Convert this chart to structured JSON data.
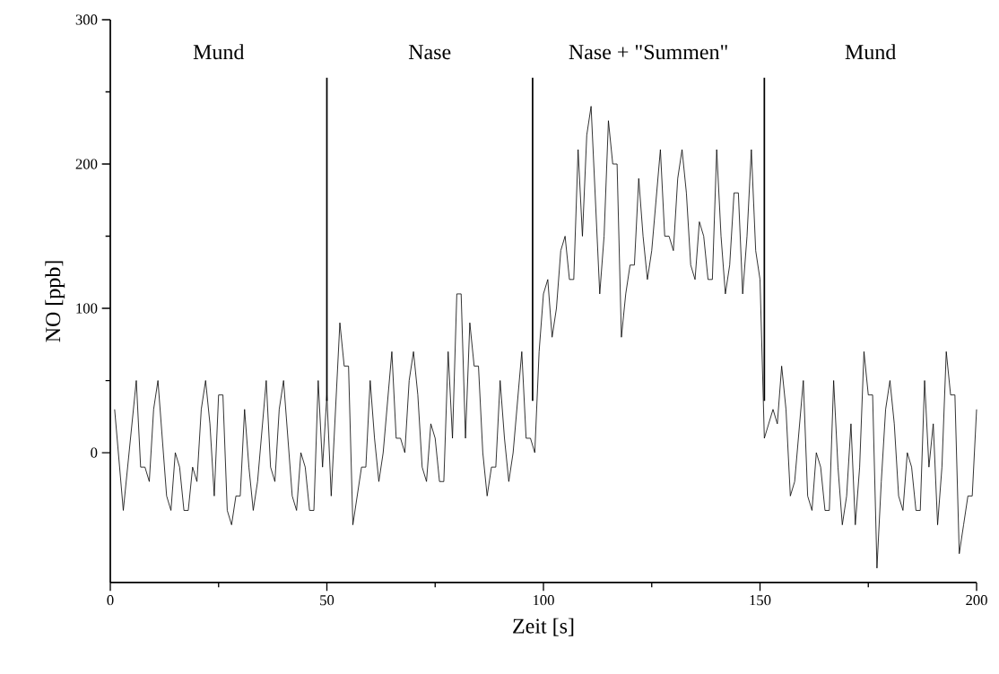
{
  "chart_data": {
    "type": "line",
    "xlabel": "Zeit [s]",
    "ylabel": "NO [ppb]",
    "x": [
      1,
      3,
      6,
      7,
      8,
      9,
      10,
      11,
      13,
      14,
      15,
      16,
      17,
      18,
      19,
      20,
      21,
      22,
      23,
      24,
      25,
      26,
      27,
      28,
      29,
      30,
      31,
      32,
      33,
      34,
      36,
      37,
      38,
      39,
      40,
      42,
      43,
      44,
      45,
      46,
      47,
      48,
      49,
      50,
      51,
      53,
      54,
      55,
      56,
      58,
      59,
      60,
      61,
      62,
      63,
      65,
      66,
      67,
      68,
      69,
      70,
      71,
      72,
      73,
      74,
      75,
      76,
      77,
      78,
      79,
      80,
      81,
      82,
      83,
      84,
      85,
      86,
      87,
      88,
      89,
      90,
      91,
      92,
      93,
      95,
      96,
      97,
      98,
      99,
      100,
      101,
      102,
      103,
      104,
      105,
      106,
      107,
      108,
      109,
      110,
      111,
      113,
      114,
      115,
      116,
      117,
      118,
      119,
      120,
      121,
      122,
      123,
      124,
      125,
      127,
      128,
      129,
      130,
      131,
      132,
      133,
      134,
      135,
      136,
      137,
      138,
      139,
      140,
      141,
      142,
      143,
      144,
      145,
      146,
      147,
      148,
      149,
      150,
      151,
      153,
      154,
      155,
      156,
      157,
      158,
      160,
      161,
      162,
      163,
      164,
      165,
      166,
      167,
      168,
      169,
      170,
      171,
      172,
      173,
      174,
      175,
      176,
      177,
      178,
      179,
      180,
      181,
      182,
      183,
      184,
      185,
      186,
      187,
      188,
      189,
      190,
      191,
      192,
      193,
      194,
      195,
      196,
      197,
      198,
      199,
      200
    ],
    "series": [
      {
        "color": "#000000",
        "values": [
          30,
          -40,
          50,
          -10,
          -10,
          -20,
          30,
          50,
          -30,
          -40,
          0,
          -10,
          -40,
          -40,
          -10,
          -20,
          30,
          50,
          20,
          -30,
          40,
          40,
          -40,
          -50,
          -30,
          -30,
          30,
          -10,
          -40,
          -20,
          50,
          -10,
          -20,
          30,
          50,
          -30,
          -40,
          0,
          -10,
          -40,
          -40,
          50,
          -10,
          40,
          -30,
          90,
          60,
          60,
          -50,
          -10,
          -10,
          50,
          10,
          -20,
          0,
          70,
          10,
          10,
          0,
          50,
          70,
          40,
          -10,
          -20,
          20,
          10,
          -20,
          -20,
          70,
          10,
          110,
          110,
          10,
          90,
          60,
          60,
          0,
          -30,
          -10,
          -10,
          50,
          10,
          -20,
          0,
          70,
          10,
          10,
          0,
          70,
          110,
          120,
          80,
          100,
          140,
          150,
          120,
          120,
          210,
          150,
          220,
          240,
          110,
          150,
          230,
          200,
          200,
          80,
          110,
          130,
          130,
          190,
          150,
          120,
          140,
          210,
          150,
          150,
          140,
          190,
          210,
          180,
          130,
          120,
          160,
          150,
          120,
          120,
          210,
          150,
          110,
          130,
          180,
          180,
          110,
          150,
          210,
          140,
          120,
          10,
          30,
          20,
          60,
          30,
          -30,
          -20,
          50,
          -30,
          -40,
          0,
          -10,
          -40,
          -40,
          50,
          -10,
          -50,
          -30,
          20,
          -50,
          -10,
          70,
          40,
          40,
          -80,
          -20,
          30,
          50,
          20,
          -30,
          -40,
          0,
          -10,
          -40,
          -40,
          50,
          -10,
          20,
          -50,
          -10,
          70,
          40,
          40,
          -70,
          -50,
          -30,
          -30,
          30
        ]
      }
    ],
    "xlim": [
      0,
      200
    ],
    "ylim": [
      -90,
      300
    ],
    "xticks": [
      0,
      50,
      100,
      150,
      200
    ],
    "yticks": [
      0,
      100,
      200,
      300
    ],
    "grid": false,
    "marker": "none",
    "line_style": "solid",
    "ref_lines": [
      {
        "axis": "x",
        "value": 50,
        "color": "#000000"
      },
      {
        "axis": "x",
        "value": 97.5,
        "color": "#000000"
      },
      {
        "axis": "x",
        "value": 151,
        "color": "#000000"
      }
    ],
    "annotations": [
      "Mund",
      "Nase",
      "Nase + \"Summen\"",
      "Mund"
    ]
  }
}
